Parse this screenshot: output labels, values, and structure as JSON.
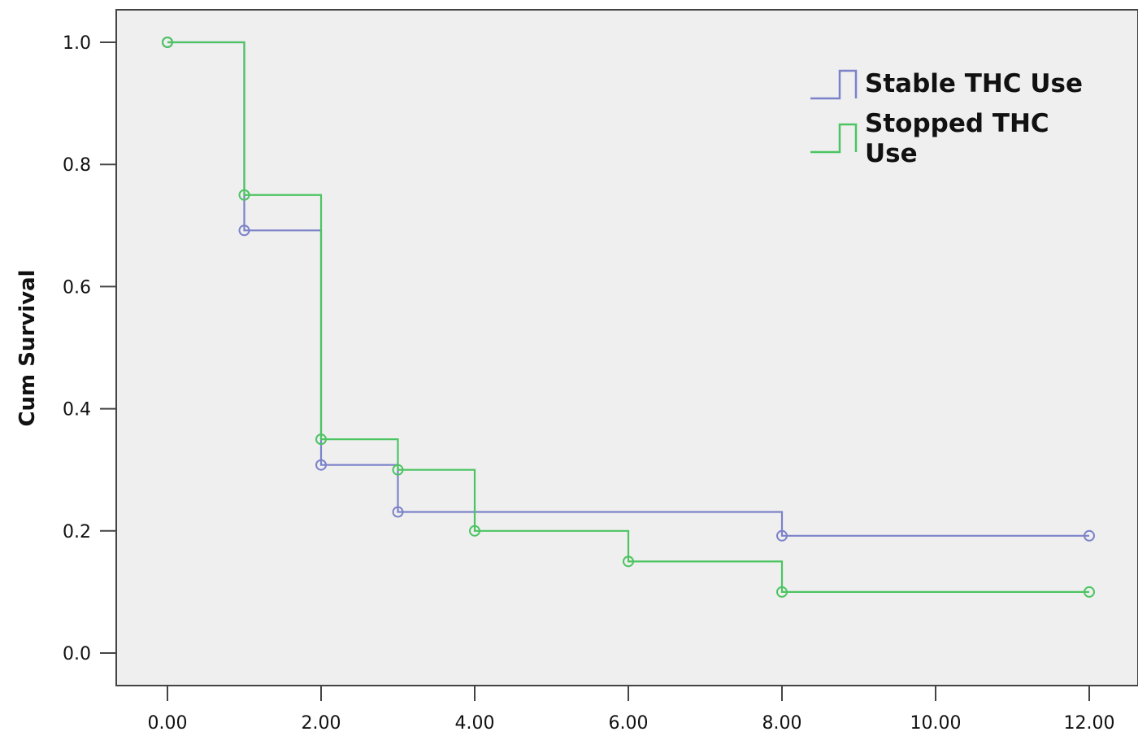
{
  "chart_data": {
    "type": "line",
    "subtype": "kaplan-meier step",
    "ylabel": "Cum Survival",
    "xlabel": "",
    "xlim": [
      0,
      12
    ],
    "ylim": [
      0,
      1
    ],
    "x_ticks": [
      "0.00",
      "2.00",
      "4.00",
      "6.00",
      "8.00",
      "10.00",
      "12.00"
    ],
    "y_ticks": [
      "0.0",
      "0.2",
      "0.4",
      "0.6",
      "0.8",
      "1.0"
    ],
    "grid": false,
    "legend_position": "top-right",
    "background_color": "#efefef",
    "series": [
      {
        "name": "Stable THC Use",
        "color": "#7b82c9",
        "points": [
          [
            0,
            1.0
          ],
          [
            1,
            0.692
          ],
          [
            2,
            0.308
          ],
          [
            3,
            0.231
          ],
          [
            8,
            0.192
          ],
          [
            12,
            0.192
          ]
        ]
      },
      {
        "name": "Stopped THC Use",
        "color": "#4cc462",
        "points": [
          [
            0,
            1.0
          ],
          [
            1,
            0.75
          ],
          [
            2,
            0.35
          ],
          [
            3,
            0.3
          ],
          [
            4,
            0.2
          ],
          [
            6,
            0.15
          ],
          [
            8,
            0.1
          ],
          [
            12,
            0.1
          ]
        ]
      }
    ]
  }
}
